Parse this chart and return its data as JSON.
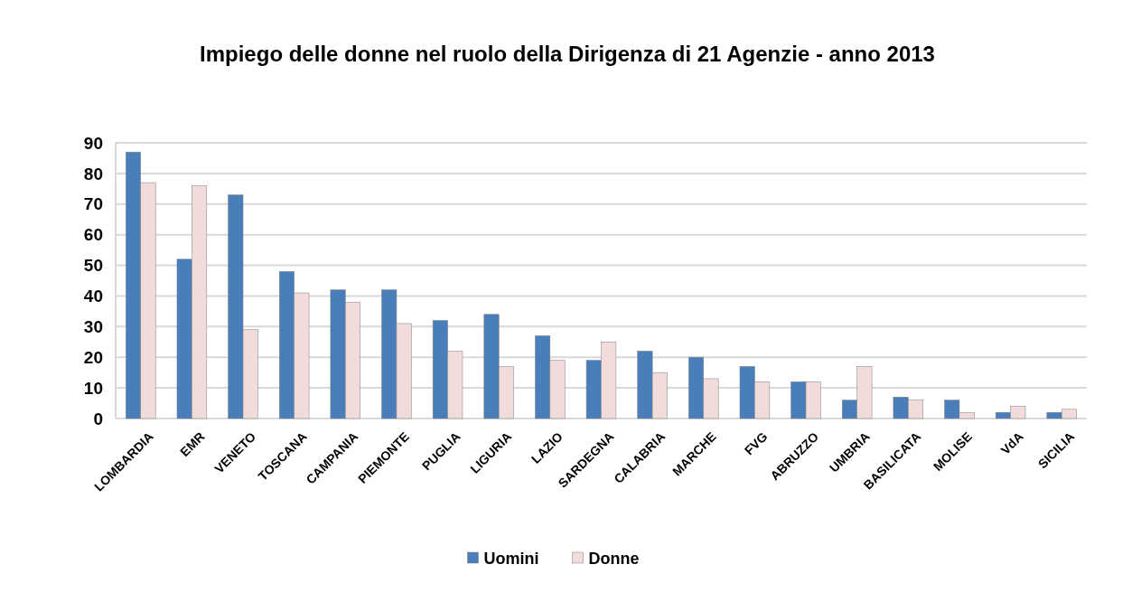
{
  "chart_data": {
    "type": "bar",
    "title": "Impiego delle donne nel ruolo della Dirigenza di 21 Agenzie - anno 2013",
    "categories": [
      "LOMBARDIA",
      "EMR",
      "VENETO",
      "TOSCANA",
      "CAMPANIA",
      "PIEMONTE",
      "PUGLIA",
      "LIGURIA",
      "LAZIO",
      "SARDEGNA",
      "CALABRIA",
      "MARCHE",
      "FVG",
      "ABRUZZO",
      "UMBRIA",
      "BASILICATA",
      "MOLISE",
      "VdA",
      "SICILIA"
    ],
    "series": [
      {
        "name": "Uomini",
        "color": "#4a7ebb",
        "values": [
          87,
          52,
          73,
          48,
          42,
          42,
          32,
          34,
          27,
          19,
          22,
          20,
          17,
          12,
          6,
          7,
          6,
          2,
          2
        ]
      },
      {
        "name": "Donne",
        "color": "#f2dcdb",
        "values": [
          77,
          76,
          29,
          41,
          38,
          31,
          22,
          17,
          19,
          25,
          15,
          13,
          12,
          12,
          17,
          6,
          2,
          4,
          3
        ]
      }
    ],
    "ylim": [
      0,
      90
    ],
    "yticks": [
      0,
      10,
      20,
      30,
      40,
      50,
      60,
      70,
      80,
      90
    ],
    "grid": "y",
    "legend": "bottom"
  }
}
